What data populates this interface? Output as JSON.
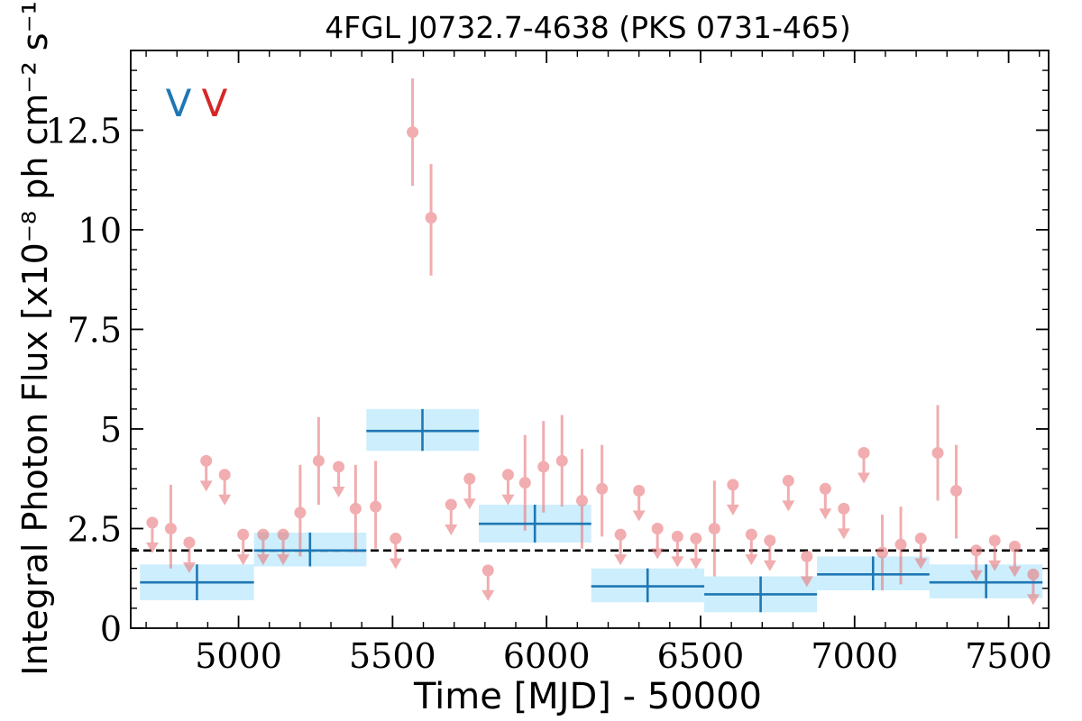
{
  "chart_data": {
    "type": "scatter",
    "title": "4FGL J0732.7-4638 (PKS 0731-465)",
    "xlabel": "Time [MJD] - 50000",
    "ylabel": "Integral Photon Flux [x10⁻⁸ ph cm⁻² s⁻¹]",
    "xlim": [
      4650,
      7630
    ],
    "ylim": [
      0,
      14.5
    ],
    "x_ticks": [
      5000,
      5500,
      6000,
      6500,
      7000,
      7500
    ],
    "y_ticks": [
      0,
      2.5,
      5,
      7.5,
      10,
      12.5
    ],
    "y_tick_labels": [
      "0",
      "2.5",
      "5",
      "7.5",
      "10",
      "12.5"
    ],
    "grid": false,
    "legend_markers": [
      {
        "symbol": "V",
        "color": "#1f77b4"
      },
      {
        "symbol": "V",
        "color": "#d62728"
      }
    ],
    "reference_line": {
      "y": 1.95,
      "style": "dashed",
      "color": "#000000"
    },
    "series": [
      {
        "kind": "bayesian_blocks",
        "color": "#1f77b4",
        "band_color": "#cdeefc",
        "blocks": [
          {
            "x0": 4680,
            "x1": 5050,
            "x": 4865,
            "y": 1.15,
            "ylo": 0.7,
            "yhi": 1.6
          },
          {
            "x0": 5050,
            "x1": 5415,
            "x": 5232,
            "y": 1.95,
            "ylo": 1.55,
            "yhi": 2.4
          },
          {
            "x0": 5415,
            "x1": 5780,
            "x": 5597,
            "y": 4.95,
            "ylo": 4.45,
            "yhi": 5.5
          },
          {
            "x0": 5780,
            "x1": 6145,
            "x": 5962,
            "y": 2.62,
            "ylo": 2.15,
            "yhi": 3.1
          },
          {
            "x0": 6145,
            "x1": 6512,
            "x": 6328,
            "y": 1.05,
            "ylo": 0.65,
            "yhi": 1.5
          },
          {
            "x0": 6512,
            "x1": 6878,
            "x": 6695,
            "y": 0.85,
            "ylo": 0.4,
            "yhi": 1.3
          },
          {
            "x0": 6878,
            "x1": 7243,
            "x": 7060,
            "y": 1.35,
            "ylo": 0.95,
            "yhi": 1.8
          },
          {
            "x0": 7243,
            "x1": 7610,
            "x": 7427,
            "y": 1.15,
            "ylo": 0.75,
            "yhi": 1.6
          }
        ]
      },
      {
        "kind": "binned_points",
        "color": "#e8787b",
        "detections": [
          {
            "x": 4780,
            "y": 2.5,
            "ylo": 1.5,
            "yhi": 3.6
          },
          {
            "x": 5200,
            "y": 2.9,
            "ylo": 1.8,
            "yhi": 4.1
          },
          {
            "x": 5260,
            "y": 4.2,
            "ylo": 3.1,
            "yhi": 5.3
          },
          {
            "x": 5380,
            "y": 3.0,
            "ylo": 1.9,
            "yhi": 4.1
          },
          {
            "x": 5445,
            "y": 3.05,
            "ylo": 2.0,
            "yhi": 4.2
          },
          {
            "x": 5565,
            "y": 12.45,
            "ylo": 11.1,
            "yhi": 13.8
          },
          {
            "x": 5625,
            "y": 10.3,
            "ylo": 8.85,
            "yhi": 11.65
          },
          {
            "x": 5930,
            "y": 3.65,
            "ylo": 2.45,
            "yhi": 4.85
          },
          {
            "x": 5990,
            "y": 4.05,
            "ylo": 2.9,
            "yhi": 5.2
          },
          {
            "x": 6050,
            "y": 4.2,
            "ylo": 3.05,
            "yhi": 5.35
          },
          {
            "x": 6115,
            "y": 3.2,
            "ylo": 2.0,
            "yhi": 4.5
          },
          {
            "x": 6180,
            "y": 3.5,
            "ylo": 2.3,
            "yhi": 4.6
          },
          {
            "x": 6545,
            "y": 2.5,
            "ylo": 1.3,
            "yhi": 3.7
          },
          {
            "x": 7090,
            "y": 1.9,
            "ylo": 0.95,
            "yhi": 2.85
          },
          {
            "x": 7150,
            "y": 2.1,
            "ylo": 1.1,
            "yhi": 3.05
          },
          {
            "x": 7270,
            "y": 4.4,
            "ylo": 3.2,
            "yhi": 5.6
          },
          {
            "x": 7330,
            "y": 3.45,
            "ylo": 2.25,
            "yhi": 4.6
          }
        ],
        "upper_limits": [
          {
            "x": 4720,
            "y": 2.65
          },
          {
            "x": 4840,
            "y": 2.15
          },
          {
            "x": 4895,
            "y": 4.2
          },
          {
            "x": 4955,
            "y": 3.85
          },
          {
            "x": 5015,
            "y": 2.35
          },
          {
            "x": 5080,
            "y": 2.35
          },
          {
            "x": 5145,
            "y": 2.35
          },
          {
            "x": 5325,
            "y": 4.05
          },
          {
            "x": 5510,
            "y": 2.25
          },
          {
            "x": 5690,
            "y": 3.1
          },
          {
            "x": 5750,
            "y": 3.75
          },
          {
            "x": 5810,
            "y": 1.45
          },
          {
            "x": 5875,
            "y": 3.85
          },
          {
            "x": 6240,
            "y": 2.35
          },
          {
            "x": 6300,
            "y": 3.45
          },
          {
            "x": 6360,
            "y": 2.5
          },
          {
            "x": 6425,
            "y": 2.3
          },
          {
            "x": 6485,
            "y": 2.25
          },
          {
            "x": 6605,
            "y": 3.6
          },
          {
            "x": 6665,
            "y": 2.35
          },
          {
            "x": 6725,
            "y": 2.2
          },
          {
            "x": 6785,
            "y": 3.7
          },
          {
            "x": 6845,
            "y": 1.8
          },
          {
            "x": 6905,
            "y": 3.5
          },
          {
            "x": 6965,
            "y": 3.0
          },
          {
            "x": 7030,
            "y": 4.4
          },
          {
            "x": 7215,
            "y": 2.25
          },
          {
            "x": 7395,
            "y": 1.95
          },
          {
            "x": 7455,
            "y": 2.2
          },
          {
            "x": 7520,
            "y": 2.05
          },
          {
            "x": 7580,
            "y": 1.35
          }
        ]
      }
    ]
  }
}
